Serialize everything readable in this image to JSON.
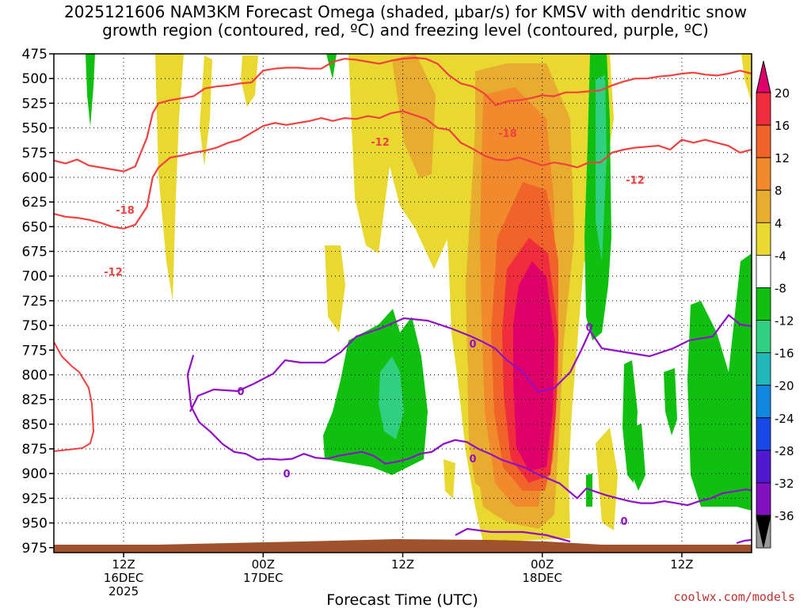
{
  "chart_data": {
    "type": "heatmap",
    "title_line1": "2025121606 NAM3KM Forecast Omega (shaded, µbar/s) for KMSV with dendritic snow",
    "title_line2": "growth region (contoured, red, ºC) and freezing level (contoured, purple, ºC)",
    "xlabel": "Forecast Time (UTC)",
    "ylabel": "",
    "credit": "coolwx.com/models",
    "x_range_hours": [
      0,
      60
    ],
    "y_range_mb": [
      475,
      980
    ],
    "y_ticks": [
      "475",
      "500",
      "525",
      "550",
      "575",
      "600",
      "625",
      "650",
      "675",
      "700",
      "725",
      "750",
      "775",
      "800",
      "825",
      "850",
      "875",
      "900",
      "925",
      "950",
      "975"
    ],
    "x_ticks": [
      {
        "hour": 6,
        "line1": "12Z",
        "line2": "16DEC",
        "line3": "2025"
      },
      {
        "hour": 18,
        "line1": "00Z",
        "line2": "17DEC",
        "line3": ""
      },
      {
        "hour": 30,
        "line1": "12Z",
        "line2": "",
        "line3": ""
      },
      {
        "hour": 42,
        "line1": "00Z",
        "line2": "18DEC",
        "line3": ""
      },
      {
        "hour": 54,
        "line1": "12Z",
        "line2": "",
        "line3": ""
      }
    ],
    "colorbar": {
      "labels": [
        "20",
        "16",
        "12",
        "8",
        "4",
        "-4",
        "-8",
        "-12",
        "-16",
        "-20",
        "-24",
        "-28",
        "-32",
        "-36"
      ],
      "colors": [
        "#e0006a",
        "#f02d3c",
        "#f0642a",
        "#f08a2c",
        "#e8ac30",
        "#e8d830",
        "#ffffff",
        "#10c010",
        "#30d080",
        "#20b8b8",
        "#1088e0",
        "#1848e8",
        "#5018d0",
        "#8010c0",
        "#9a9a9a"
      ],
      "max_arrow_color": "#e0006a",
      "min_arrow_color": "#000000"
    },
    "contour_labels": {
      "dgz_minus18": "-18",
      "dgz_minus12": "-12",
      "freezing": "0"
    },
    "colors": {
      "dgz_contour": "#f04040",
      "freezing_contour": "#9010c8",
      "terrain": "#a0522d",
      "grid": "#000000"
    },
    "series": [
      {
        "name": "-18C contour (upper)",
        "hours": [
          0,
          1,
          2,
          3,
          4,
          5,
          6,
          7,
          8,
          8.5,
          9,
          10,
          11,
          12,
          13,
          14,
          15,
          16,
          17,
          18,
          19,
          20,
          21,
          22,
          23,
          24,
          25,
          26,
          27,
          28,
          29,
          30,
          31,
          32,
          33,
          34,
          35,
          36,
          37,
          38,
          39,
          40,
          41,
          42,
          43,
          44,
          45,
          46,
          47,
          48,
          49,
          50,
          51,
          52,
          53,
          54,
          55,
          56,
          57,
          58,
          59,
          60
        ],
        "mb": [
          583,
          586,
          582,
          588,
          590,
          592,
          594,
          589,
          560,
          535,
          525,
          522,
          520,
          518,
          510,
          508,
          507,
          505,
          504,
          492,
          490,
          489,
          489,
          490,
          490,
          483,
          480,
          481,
          483,
          485,
          482,
          480,
          479,
          480,
          485,
          497,
          505,
          508,
          515,
          527,
          523,
          522,
          520,
          517,
          518,
          514,
          514,
          513,
          512,
          507,
          503,
          500,
          500,
          498,
          497,
          495,
          494,
          496,
          497,
          495,
          492,
          495
        ]
      },
      {
        "name": "-12C contour (middle)",
        "hours": [
          0,
          1,
          2,
          3,
          4,
          5,
          6,
          7,
          8,
          8.5,
          9,
          10,
          11,
          12,
          13,
          14,
          15,
          16,
          17,
          18,
          19,
          20,
          21,
          22,
          23,
          24,
          25,
          26,
          27,
          28,
          29,
          30,
          31,
          32,
          33,
          34,
          35,
          36,
          37,
          38,
          39,
          40,
          41,
          42,
          43,
          44,
          45,
          46,
          47,
          48,
          49,
          50,
          51,
          52,
          53,
          54,
          55,
          56,
          57,
          58,
          59,
          60
        ],
        "mb": [
          637,
          640,
          641,
          643,
          646,
          650,
          652,
          648,
          630,
          600,
          590,
          580,
          578,
          575,
          573,
          570,
          565,
          562,
          555,
          548,
          545,
          547,
          545,
          543,
          540,
          543,
          540,
          541,
          538,
          540,
          535,
          533,
          537,
          541,
          550,
          552,
          565,
          571,
          578,
          582,
          583,
          580,
          584,
          588,
          585,
          587,
          590,
          585,
          585,
          575,
          572,
          570,
          569,
          568,
          572,
          562,
          565,
          562,
          565,
          568,
          575,
          572
        ]
      },
      {
        "name": "freezing level",
        "hours": [
          12,
          11.5,
          11.8,
          12.5,
          13.5,
          14.5,
          15.5,
          16.5,
          17.5,
          18.5,
          19.5,
          20.5,
          21.5,
          22.5,
          23.5,
          24.5,
          25.5,
          26.5,
          27.5,
          28.5,
          29.5,
          30.5,
          31.5,
          32.5,
          33.5,
          34.5,
          35.5,
          36.5,
          37.5,
          38.5,
          39.5,
          40.5,
          41.5,
          42.5,
          43.5,
          44.5,
          45.0,
          45.8,
          46.5,
          47.5,
          48.5,
          49.5,
          50.5,
          51.5,
          52.5,
          53.5,
          54.5,
          55.5,
          56.5,
          57.5,
          58.5,
          59.5,
          60
        ],
        "mb": [
          780,
          800,
          832,
          848,
          858,
          870,
          878,
          880,
          886,
          885,
          886,
          885,
          880,
          884,
          885,
          882,
          880,
          878,
          882,
          890,
          888,
          885,
          880,
          878,
          870,
          866,
          868,
          875,
          880,
          886,
          890,
          894,
          900,
          905,
          910,
          920,
          925,
          915,
          918,
          922,
          925,
          928,
          930,
          930,
          928,
          930,
          932,
          928,
          925,
          920,
          918,
          916,
          917
        ]
      }
    ]
  }
}
